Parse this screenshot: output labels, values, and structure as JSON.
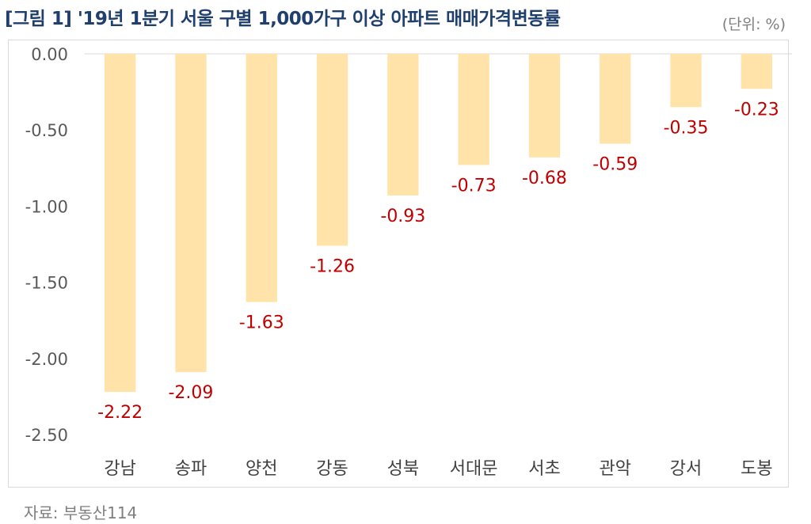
{
  "header": {
    "title": "[그림 1] '19년 1분기 서울 구별 1,000가구 이상 아파트 매매가격변동률",
    "unit": "(단위: %)"
  },
  "footer": {
    "source": "자료: 부동산114"
  },
  "chart_data": {
    "type": "bar",
    "title": "[그림 1] '19년 1분기 서울 구별 1,000가구 이상 아파트 매매가격변동률",
    "xlabel": "",
    "ylabel": "",
    "categories": [
      "강남",
      "송파",
      "양천",
      "강동",
      "성북",
      "서대문",
      "서초",
      "관악",
      "강서",
      "도봉"
    ],
    "values": [
      -2.22,
      -2.09,
      -1.63,
      -1.26,
      -0.93,
      -0.73,
      -0.68,
      -0.59,
      -0.35,
      -0.23
    ],
    "value_labels": [
      "-2.22",
      "-2.09",
      "-1.63",
      "-1.26",
      "-0.93",
      "-0.73",
      "-0.68",
      "-0.59",
      "-0.35",
      "-0.23"
    ],
    "yticks": [
      "0.00",
      "-0.50",
      "-1.00",
      "-1.50",
      "-2.00",
      "-2.50"
    ],
    "ylim": [
      -2.5,
      0
    ],
    "grid": false,
    "legend": "none",
    "bar_color": "#ffe3a8",
    "label_color": "#c00000"
  }
}
